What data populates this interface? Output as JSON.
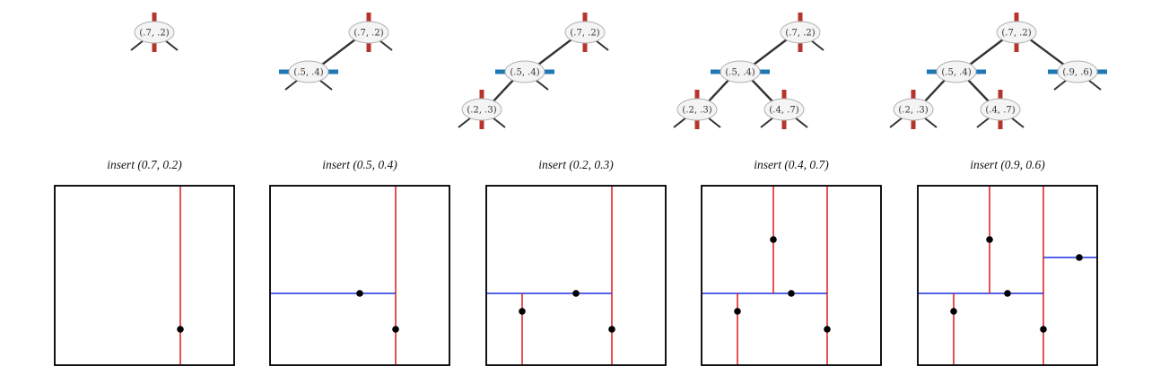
{
  "colors": {
    "vertical_split": "#e0262b",
    "horizontal_split": "#1f2fe0",
    "tree_vertical_bar": "#b5352d",
    "tree_horizontal_bar": "#1f77b4"
  },
  "panels": [
    {
      "caption": "insert (0.7, 0.2)",
      "tree": [
        {
          "label": "(.7, .2)",
          "split": "vertical",
          "parent": null
        }
      ],
      "points": [
        {
          "x": 0.7,
          "y": 0.2
        }
      ],
      "segments": [
        {
          "orient": "vertical",
          "at": 0.7,
          "from": 0,
          "to": 1
        }
      ]
    },
    {
      "caption": "insert (0.5, 0.4)",
      "tree": [
        {
          "label": "(.7, .2)",
          "split": "vertical",
          "parent": null
        },
        {
          "label": "(.5, .4)",
          "split": "horizontal",
          "parent": 0
        }
      ],
      "points": [
        {
          "x": 0.7,
          "y": 0.2
        },
        {
          "x": 0.5,
          "y": 0.4
        }
      ],
      "segments": [
        {
          "orient": "vertical",
          "at": 0.7,
          "from": 0,
          "to": 1
        },
        {
          "orient": "horizontal",
          "at": 0.4,
          "from": 0,
          "to": 0.7
        }
      ]
    },
    {
      "caption": "insert (0.2, 0.3)",
      "tree": [
        {
          "label": "(.7, .2)",
          "split": "vertical",
          "parent": null
        },
        {
          "label": "(.5, .4)",
          "split": "horizontal",
          "parent": 0
        },
        {
          "label": "(.2, .3)",
          "split": "vertical",
          "parent": 1
        }
      ],
      "points": [
        {
          "x": 0.7,
          "y": 0.2
        },
        {
          "x": 0.5,
          "y": 0.4
        },
        {
          "x": 0.2,
          "y": 0.3
        }
      ],
      "segments": [
        {
          "orient": "vertical",
          "at": 0.7,
          "from": 0,
          "to": 1
        },
        {
          "orient": "horizontal",
          "at": 0.4,
          "from": 0,
          "to": 0.7
        },
        {
          "orient": "vertical",
          "at": 0.2,
          "from": 0,
          "to": 0.4
        }
      ]
    },
    {
      "caption": "insert (0.4, 0.7)",
      "tree": [
        {
          "label": "(.7, .2)",
          "split": "vertical",
          "parent": null
        },
        {
          "label": "(.5, .4)",
          "split": "horizontal",
          "parent": 0
        },
        {
          "label": "(.2, .3)",
          "split": "vertical",
          "parent": 1
        },
        {
          "label": "(.4, .7)",
          "split": "vertical",
          "parent": 1
        }
      ],
      "points": [
        {
          "x": 0.7,
          "y": 0.2
        },
        {
          "x": 0.5,
          "y": 0.4
        },
        {
          "x": 0.2,
          "y": 0.3
        },
        {
          "x": 0.4,
          "y": 0.7
        }
      ],
      "segments": [
        {
          "orient": "vertical",
          "at": 0.7,
          "from": 0,
          "to": 1
        },
        {
          "orient": "horizontal",
          "at": 0.4,
          "from": 0,
          "to": 0.7
        },
        {
          "orient": "vertical",
          "at": 0.2,
          "from": 0,
          "to": 0.4
        },
        {
          "orient": "vertical",
          "at": 0.4,
          "from": 0.4,
          "to": 1
        }
      ]
    },
    {
      "caption": "insert (0.9, 0.6)",
      "tree": [
        {
          "label": "(.7, .2)",
          "split": "vertical",
          "parent": null
        },
        {
          "label": "(.5, .4)",
          "split": "horizontal",
          "parent": 0
        },
        {
          "label": "(.2, .3)",
          "split": "vertical",
          "parent": 1
        },
        {
          "label": "(.4, .7)",
          "split": "vertical",
          "parent": 1
        },
        {
          "label": "(.9, .6)",
          "split": "horizontal",
          "parent": 0
        }
      ],
      "points": [
        {
          "x": 0.7,
          "y": 0.2
        },
        {
          "x": 0.5,
          "y": 0.4
        },
        {
          "x": 0.2,
          "y": 0.3
        },
        {
          "x": 0.4,
          "y": 0.7
        },
        {
          "x": 0.9,
          "y": 0.6
        }
      ],
      "segments": [
        {
          "orient": "vertical",
          "at": 0.7,
          "from": 0,
          "to": 1
        },
        {
          "orient": "horizontal",
          "at": 0.4,
          "from": 0,
          "to": 0.7
        },
        {
          "orient": "vertical",
          "at": 0.2,
          "from": 0,
          "to": 0.4
        },
        {
          "orient": "vertical",
          "at": 0.4,
          "from": 0.4,
          "to": 1
        },
        {
          "orient": "horizontal",
          "at": 0.6,
          "from": 0.7,
          "to": 1
        }
      ]
    }
  ]
}
